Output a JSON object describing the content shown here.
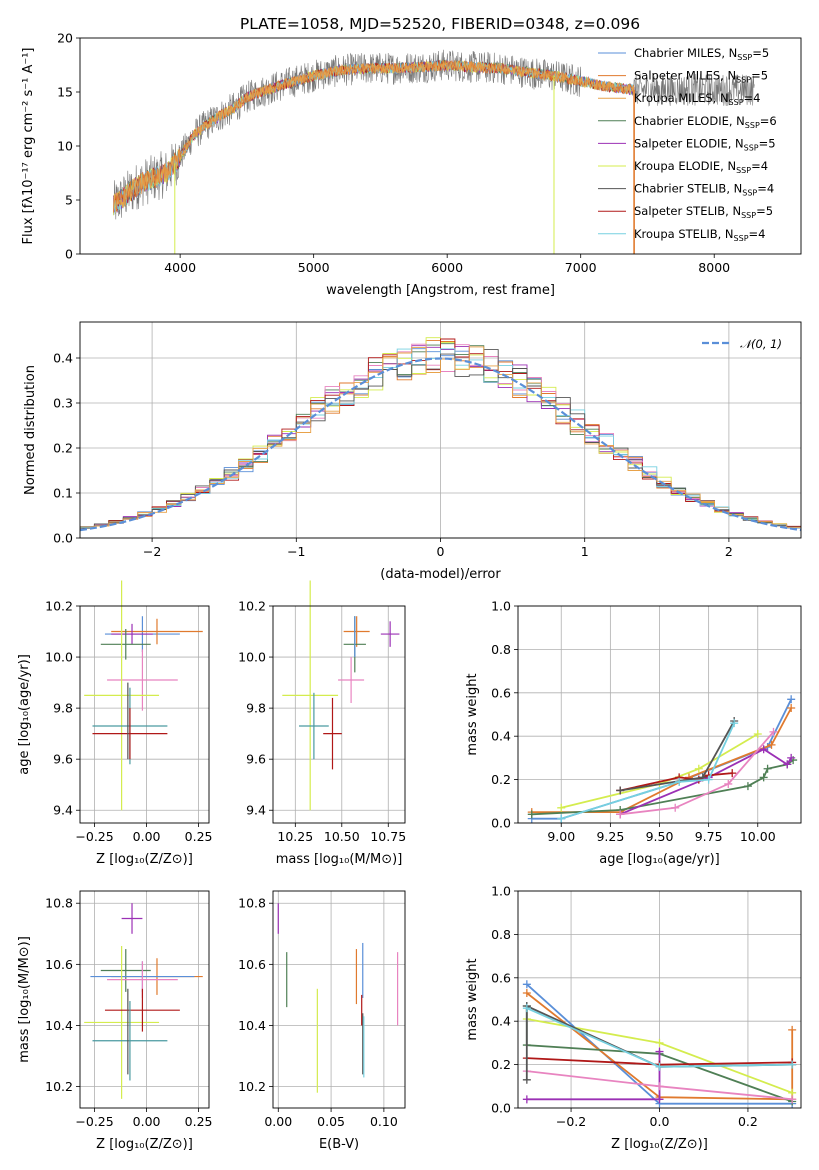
{
  "figure": {
    "title": "PLATE=1058, MJD=52520, FIBERID=0348, z=0.096"
  },
  "colors": {
    "Chabrier MILES": "#5a8fd8",
    "Salpeter MILES": "#e07a2e",
    "Kroupa MILES": "#e8a24a",
    "Chabrier ELODIE": "#4f7f55",
    "Salpeter ELODIE": "#9b30b5",
    "Kroupa ELODIE": "#d4ec4e",
    "Chabrier STELIB": "#555555",
    "Salpeter STELIB": "#b01818",
    "Kroupa STELIB": "#76d0e0",
    "Pink": "#e884c0",
    "Normal": "#5a8fd8"
  },
  "chart_data": [
    {
      "id": "spectrum",
      "type": "line",
      "title": "PLATE=1058, MJD=52520, FIBERID=0348, z=0.096",
      "xlabel": "wavelength [Angstrom, rest frame]",
      "ylabel": "Flux [fλ10⁻¹⁷ erg cm⁻² s⁻¹ A⁻¹]",
      "xlim": [
        3250,
        8650
      ],
      "ylim": [
        0,
        20
      ],
      "xticks": [
        4000,
        5000,
        6000,
        7000,
        8000
      ],
      "yticks": [
        0,
        5,
        10,
        15,
        20
      ],
      "legend": "top-right",
      "series_names": [
        "Chabrier MILES, N_SSP=5",
        "Salpeter MILES, N_SSP=5",
        "Kroupa MILES, N_SSP=4",
        "Chabrier ELODIE, N_SSP=6",
        "Salpeter ELODIE, N_SSP=5",
        "Kroupa ELODIE, N_SSP=4",
        "Chabrier STELIB, N_SSP=4",
        "Salpeter STELIB, N_SSP=5",
        "Kroupa STELIB, N_SSP=4"
      ],
      "legend_entries": [
        {
          "main": "Chabrier MILES, N",
          "sub": "SSP",
          "tail": "=5",
          "color": "#5a8fd8"
        },
        {
          "main": "Salpeter MILES, N",
          "sub": "SSP",
          "tail": "=5",
          "color": "#e07a2e"
        },
        {
          "main": "Kroupa MILES, N",
          "sub": "SSP",
          "tail": "=4",
          "color": "#e8a24a"
        },
        {
          "main": "Chabrier ELODIE, N",
          "sub": "SSP",
          "tail": "=6",
          "color": "#4f7f55"
        },
        {
          "main": "Salpeter ELODIE, N",
          "sub": "SSP",
          "tail": "=5",
          "color": "#9b30b5"
        },
        {
          "main": "Kroupa ELODIE, N",
          "sub": "SSP",
          "tail": "=4",
          "color": "#d4ec4e"
        },
        {
          "main": "Chabrier STELIB, N",
          "sub": "SSP",
          "tail": "=4",
          "color": "#555555"
        },
        {
          "main": "Salpeter STELIB, N",
          "sub": "SSP",
          "tail": "=5",
          "color": "#b01818"
        },
        {
          "main": "Kroupa STELIB, N",
          "sub": "SSP",
          "tail": "=4",
          "color": "#76d0e0"
        }
      ],
      "model_envelope": {
        "wavelength": [
          3500,
          3600,
          3700,
          3800,
          3900,
          4000,
          4100,
          4200,
          4300,
          4400,
          4500,
          4600,
          4800,
          5000,
          5200,
          5400,
          5600,
          5800,
          6000,
          6200,
          6400,
          6600,
          6800,
          7000,
          7200,
          7400
        ],
        "flux": [
          4.5,
          5.5,
          6.5,
          7.0,
          7.5,
          9.0,
          11.0,
          12.0,
          12.8,
          13.5,
          14.5,
          15.0,
          15.8,
          16.5,
          17.0,
          17.2,
          17.2,
          17.3,
          17.5,
          17.3,
          17.2,
          16.8,
          16.5,
          16.0,
          15.5,
          15.2
        ]
      },
      "data_range": [
        3500,
        8300
      ],
      "drops": [
        {
          "wavelength": 3960,
          "flux": 0
        },
        {
          "wavelength": 6800,
          "flux": 0
        },
        {
          "wavelength": 7400,
          "flux": 0
        }
      ]
    },
    {
      "id": "residuals",
      "type": "histogram",
      "xlabel": "(data-model)/error",
      "ylabel": "Normed distribution",
      "xlim": [
        -2.5,
        2.5
      ],
      "ylim": [
        0,
        0.48
      ],
      "xticks": [
        -2,
        -1,
        0,
        1,
        2
      ],
      "yticks": [
        0.0,
        0.1,
        0.2,
        0.3,
        0.4
      ],
      "grid": true,
      "legend": "top-right",
      "reference_curve": {
        "label": "𝒩(0, 1)",
        "mean": 0,
        "sigma": 1
      },
      "bin_width": 0.1,
      "series_count": 10
    },
    {
      "id": "age-vs-Z",
      "type": "errorbar",
      "xlabel": "Z [log₁₀(Z/Z⊙)]",
      "ylabel": "age  [log₁₀(age/yr)]",
      "xlim": [
        -0.32,
        0.3
      ],
      "ylim": [
        9.35,
        10.2
      ],
      "xticks": [
        -0.25,
        0.0,
        0.25
      ],
      "yticks": [
        9.4,
        9.6,
        9.8,
        10.0,
        10.2
      ],
      "grid": true,
      "points": [
        {
          "x": -0.02,
          "y": 10.09,
          "xerr": 0.18,
          "yerr": 0.07,
          "color": "#5a8fd8"
        },
        {
          "x": 0.05,
          "y": 10.1,
          "xerr": 0.22,
          "yerr": 0.05,
          "color": "#e07a2e"
        },
        {
          "x": -0.07,
          "y": 10.09,
          "xerr": 0.1,
          "yerr": 0.04,
          "color": "#9b30b5"
        },
        {
          "x": -0.1,
          "y": 10.05,
          "xerr": 0.12,
          "yerr": 0.06,
          "color": "#4f7f55"
        },
        {
          "x": -0.02,
          "y": 9.91,
          "xerr": 0.17,
          "yerr": 0.12,
          "color": "#e884c0"
        },
        {
          "x": -0.12,
          "y": 9.85,
          "xerr": 0.18,
          "yerr": 0.45,
          "color": "#d4ec4e"
        },
        {
          "x": -0.08,
          "y": 9.73,
          "xerr": 0.18,
          "yerr": 0.15,
          "color": "#4a9aa0"
        },
        {
          "x": -0.08,
          "y": 9.7,
          "xerr": 0.18,
          "yerr": 0.1,
          "color": "#b01818"
        },
        {
          "x": -0.09,
          "y": 9.75,
          "xerr": 0.0,
          "yerr": 0.15,
          "color": "#555555"
        }
      ]
    },
    {
      "id": "age-vs-mass",
      "type": "errorbar",
      "xlabel": "mass [log₁₀(M/M⊙)]",
      "ylabel": "",
      "xlim": [
        10.13,
        10.84
      ],
      "ylim": [
        9.35,
        10.2
      ],
      "xticks": [
        10.25,
        10.5,
        10.75
      ],
      "yticks": [
        9.4,
        9.6,
        9.8,
        10.0,
        10.2
      ],
      "grid": true,
      "points": [
        {
          "x": 10.58,
          "y": 10.1,
          "xerr": 0.07,
          "yerr": 0.06,
          "color": "#e07a2e"
        },
        {
          "x": 10.76,
          "y": 10.09,
          "xerr": 0.05,
          "yerr": 0.05,
          "color": "#9b30b5"
        },
        {
          "x": 10.57,
          "y": 10.05,
          "xerr": 0.06,
          "yerr": 0.11,
          "color": "#4f7f55"
        },
        {
          "x": 10.55,
          "y": 9.91,
          "xerr": 0.07,
          "yerr": 0.09,
          "color": "#e884c0"
        },
        {
          "x": 10.33,
          "y": 9.85,
          "xerr": 0.15,
          "yerr": 0.45,
          "color": "#d4ec4e"
        },
        {
          "x": 10.35,
          "y": 9.73,
          "xerr": 0.08,
          "yerr": 0.13,
          "color": "#4a9aa0"
        },
        {
          "x": 10.45,
          "y": 9.7,
          "xerr": 0.05,
          "yerr": 0.14,
          "color": "#b01818"
        },
        {
          "x": 10.57,
          "y": 10.08,
          "xerr": 0.0,
          "yerr": 0.08,
          "color": "#5a8fd8"
        }
      ]
    },
    {
      "id": "mass-weight-vs-age",
      "type": "line",
      "xlabel": "age  [log₁₀(age/yr)]",
      "ylabel": "mass weight",
      "xlim": [
        8.78,
        10.22
      ],
      "ylim": [
        0,
        1.0
      ],
      "xticks": [
        9.0,
        9.25,
        9.5,
        9.75,
        10.0
      ],
      "yticks": [
        0.0,
        0.2,
        0.4,
        0.6,
        0.8,
        1.0
      ],
      "grid": true,
      "series": [
        {
          "color": "#5a8fd8",
          "x": [
            8.85,
            9.0,
            9.6,
            10.05,
            10.17
          ],
          "y": [
            0.02,
            0.02,
            0.19,
            0.35,
            0.57
          ]
        },
        {
          "color": "#e07a2e",
          "x": [
            8.85,
            9.3,
            9.65,
            10.07,
            10.17
          ],
          "y": [
            0.05,
            0.05,
            0.21,
            0.36,
            0.53
          ]
        },
        {
          "color": "#4f7f55",
          "x": [
            8.85,
            9.3,
            9.95,
            10.03,
            10.05,
            10.15,
            10.18
          ],
          "y": [
            0.04,
            0.06,
            0.17,
            0.21,
            0.25,
            0.27,
            0.29
          ]
        },
        {
          "color": "#9b30b5",
          "x": [
            9.3,
            9.75,
            10.03,
            10.15,
            10.17
          ],
          "y": [
            0.04,
            0.21,
            0.34,
            0.27,
            0.3
          ]
        },
        {
          "color": "#d4ec4e",
          "x": [
            9.0,
            9.5,
            9.7,
            10.0
          ],
          "y": [
            0.07,
            0.18,
            0.25,
            0.41
          ]
        },
        {
          "color": "#e884c0",
          "x": [
            9.3,
            9.58,
            9.85,
            10.08
          ],
          "y": [
            0.04,
            0.07,
            0.18,
            0.42
          ]
        },
        {
          "color": "#b01818",
          "x": [
            9.3,
            9.6,
            9.7,
            9.75,
            9.87
          ],
          "y": [
            0.15,
            0.21,
            0.2,
            0.22,
            0.23
          ]
        },
        {
          "color": "#555555",
          "x": [
            9.3,
            9.72,
            9.88
          ],
          "y": [
            0.15,
            0.21,
            0.47
          ]
        },
        {
          "color": "#76d0e0",
          "x": [
            9.0,
            9.6,
            9.75,
            9.88
          ],
          "y": [
            0.02,
            0.19,
            0.2,
            0.46
          ]
        }
      ]
    },
    {
      "id": "mass-vs-Z",
      "type": "errorbar",
      "xlabel": "Z [log₁₀(Z/Z⊙)]",
      "ylabel": "mass [log₁₀(M/M⊙)]",
      "xlim": [
        -0.32,
        0.3
      ],
      "ylim": [
        10.13,
        10.84
      ],
      "xticks": [
        -0.25,
        0.0,
        0.25
      ],
      "yticks": [
        10.2,
        10.4,
        10.6,
        10.8
      ],
      "grid": true,
      "points": [
        {
          "x": -0.07,
          "y": 10.75,
          "xerr": 0.05,
          "yerr": 0.05,
          "color": "#9b30b5"
        },
        {
          "x": -0.1,
          "y": 10.58,
          "xerr": 0.12,
          "yerr": 0.07,
          "color": "#4f7f55"
        },
        {
          "x": 0.05,
          "y": 10.56,
          "xerr": 0.22,
          "yerr": 0.06,
          "color": "#e07a2e"
        },
        {
          "x": -0.02,
          "y": 10.56,
          "xerr": 0.25,
          "yerr": 0.05,
          "color": "#5a8fd8"
        },
        {
          "x": -0.02,
          "y": 10.55,
          "xerr": 0.17,
          "yerr": 0.06,
          "color": "#e884c0"
        },
        {
          "x": -0.12,
          "y": 10.41,
          "xerr": 0.18,
          "yerr": 0.25,
          "color": "#d4ec4e"
        },
        {
          "x": -0.02,
          "y": 10.45,
          "xerr": 0.18,
          "yerr": 0.07,
          "color": "#b01818"
        },
        {
          "x": -0.08,
          "y": 10.35,
          "xerr": 0.18,
          "yerr": 0.13,
          "color": "#4a9aa0"
        },
        {
          "x": -0.09,
          "y": 10.38,
          "xerr": 0.0,
          "yerr": 0.14,
          "color": "#555555"
        }
      ]
    },
    {
      "id": "mass-vs-EBV",
      "type": "errorbar",
      "xlabel": "E(B-V)",
      "ylabel": "",
      "xlim": [
        -0.005,
        0.12
      ],
      "ylim": [
        10.13,
        10.84
      ],
      "xticks": [
        0.0,
        0.05,
        0.1
      ],
      "yticks": [
        10.2,
        10.4,
        10.6,
        10.8
      ],
      "grid": true,
      "points": [
        {
          "x": 0.0,
          "y": 10.75,
          "xerr": 0,
          "yerr": 0.05,
          "color": "#9b30b5"
        },
        {
          "x": 0.008,
          "y": 10.55,
          "xerr": 0,
          "yerr": 0.09,
          "color": "#4f7f55"
        },
        {
          "x": 0.037,
          "y": 10.35,
          "xerr": 0,
          "yerr": 0.17,
          "color": "#d4ec4e"
        },
        {
          "x": 0.074,
          "y": 10.56,
          "xerr": 0,
          "yerr": 0.09,
          "color": "#e07a2e"
        },
        {
          "x": 0.08,
          "y": 10.58,
          "xerr": 0,
          "yerr": 0.09,
          "color": "#5a8fd8"
        },
        {
          "x": 0.079,
          "y": 10.45,
          "xerr": 0,
          "yerr": 0.05,
          "color": "#b01818"
        },
        {
          "x": 0.08,
          "y": 10.34,
          "xerr": 0,
          "yerr": 0.1,
          "color": "#555555"
        },
        {
          "x": 0.081,
          "y": 10.33,
          "xerr": 0,
          "yerr": 0.1,
          "color": "#76d0e0"
        },
        {
          "x": 0.113,
          "y": 10.52,
          "xerr": 0,
          "yerr": 0.12,
          "color": "#e884c0"
        }
      ]
    },
    {
      "id": "mass-weight-vs-Z",
      "type": "line",
      "xlabel": "Z [log₁₀(Z/Z⊙)]",
      "ylabel": "mass weight",
      "xlim": [
        -0.32,
        0.32
      ],
      "ylim": [
        0,
        1.0
      ],
      "xticks": [
        -0.2,
        0.0,
        0.2
      ],
      "yticks": [
        0.0,
        0.2,
        0.4,
        0.6,
        0.8,
        1.0
      ],
      "grid": true,
      "series": [
        {
          "color": "#5a8fd8",
          "x": [
            -0.3,
            0.0,
            0.3
          ],
          "y": [
            0.57,
            0.02,
            0.02
          ]
        },
        {
          "color": "#e07a2e",
          "x": [
            -0.3,
            0.0,
            0.3,
            0.3
          ],
          "y": [
            0.53,
            0.05,
            0.04,
            0.36
          ]
        },
        {
          "color": "#4f7f55",
          "x": [
            -0.3,
            -0.3,
            0.0,
            0.3
          ],
          "y": [
            0.47,
            0.29,
            0.25,
            0.03
          ]
        },
        {
          "color": "#9b30b5",
          "x": [
            -0.3,
            0.0,
            0.0
          ],
          "y": [
            0.04,
            0.04,
            0.26
          ]
        },
        {
          "color": "#d4ec4e",
          "x": [
            -0.3,
            0.0,
            0.3
          ],
          "y": [
            0.41,
            0.3,
            0.07
          ]
        },
        {
          "color": "#e884c0",
          "x": [
            -0.3,
            0.0,
            0.3
          ],
          "y": [
            0.17,
            0.1,
            0.04
          ]
        },
        {
          "color": "#b01818",
          "x": [
            -0.3,
            0.0,
            0.3
          ],
          "y": [
            0.23,
            0.2,
            0.21
          ]
        },
        {
          "color": "#555555",
          "x": [
            -0.3,
            -0.3,
            0.0,
            0.3
          ],
          "y": [
            0.13,
            0.47,
            0.19,
            0.2
          ]
        },
        {
          "color": "#76d0e0",
          "x": [
            -0.3,
            0.0,
            0.3
          ],
          "y": [
            0.46,
            0.19,
            0.2
          ]
        }
      ]
    }
  ]
}
